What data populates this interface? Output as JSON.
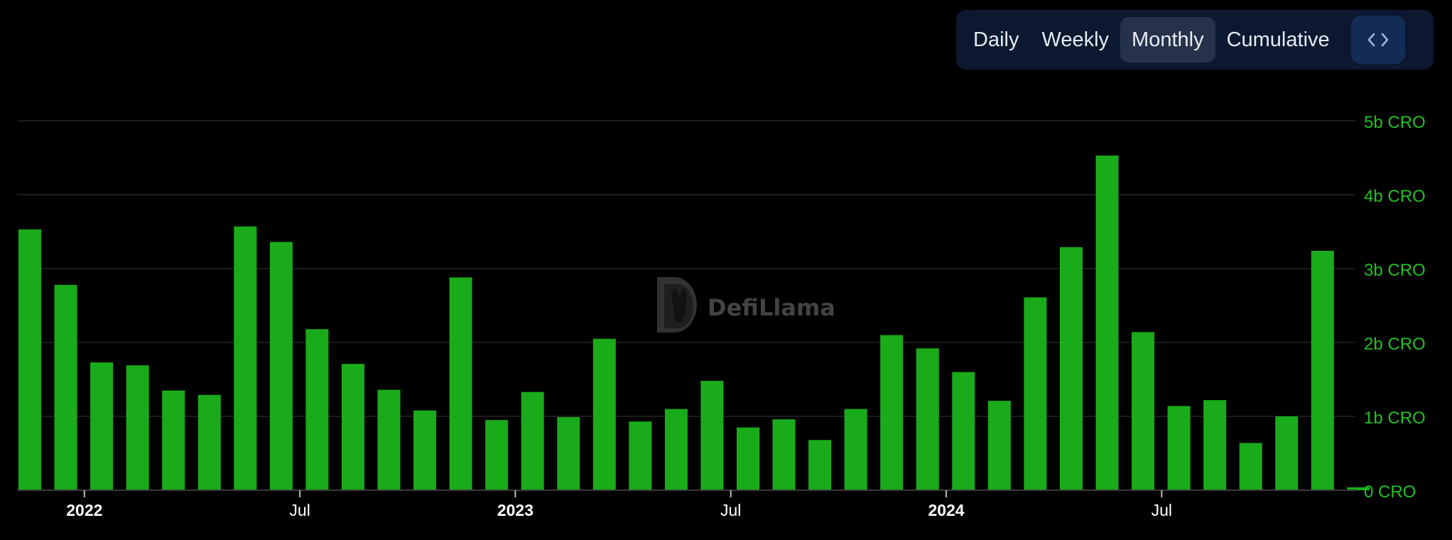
{
  "toolbar": {
    "tabs": [
      {
        "label": "Daily",
        "active": false
      },
      {
        "label": "Weekly",
        "active": false
      },
      {
        "label": "Monthly",
        "active": true
      },
      {
        "label": "Cumulative",
        "active": false
      }
    ],
    "embed_icon": "code-brackets-icon"
  },
  "watermark": {
    "label": "DefiLlama",
    "icon": "llama-logo-icon"
  },
  "colors": {
    "bar": "#1aab1b",
    "axis_label": "#22c022",
    "grid": "#1c1c1c",
    "tick_label": "#ffffff",
    "toolbar_bg": "#0b1830",
    "active_tab_bg": "#26324a",
    "embed_bg": "#132c57"
  },
  "chart_data": {
    "type": "bar",
    "categories": [
      "2021-12",
      "2022-01",
      "2022-02",
      "2022-03",
      "2022-04",
      "2022-05",
      "2022-06",
      "2022-07",
      "2022-08",
      "2022-09",
      "2022-10",
      "2022-11",
      "2022-12",
      "2023-01",
      "2023-02",
      "2023-03",
      "2023-04",
      "2023-05",
      "2023-06",
      "2023-07",
      "2023-08",
      "2023-09",
      "2023-10",
      "2023-11",
      "2023-12",
      "2024-01",
      "2024-02",
      "2024-03",
      "2024-04",
      "2024-05",
      "2024-06",
      "2024-07",
      "2024-08",
      "2024-09",
      "2024-10",
      "2024-11",
      "2024-12"
    ],
    "values": [
      3.53,
      2.78,
      1.73,
      1.69,
      1.35,
      1.29,
      3.57,
      3.36,
      2.18,
      1.71,
      1.36,
      1.08,
      2.88,
      0.95,
      1.33,
      0.99,
      2.05,
      0.93,
      1.1,
      1.48,
      0.85,
      0.96,
      0.68,
      1.1,
      2.1,
      1.92,
      1.6,
      1.21,
      2.61,
      3.29,
      4.53,
      2.14,
      1.14,
      1.22,
      0.64,
      1.0,
      3.24
    ],
    "last_partial_value": 0.04,
    "unit": "b CRO",
    "ylim": [
      0,
      5
    ],
    "yticks": [
      "0 CRO",
      "1b CRO",
      "2b CRO",
      "3b CRO",
      "4b CRO",
      "5b CRO"
    ],
    "xticks": [
      {
        "label": "2022",
        "at": "2022-01",
        "bold": true
      },
      {
        "label": "Jul",
        "at": "2022-07",
        "bold": false
      },
      {
        "label": "2023",
        "at": "2023-01",
        "bold": true
      },
      {
        "label": "Jul",
        "at": "2023-07",
        "bold": false
      },
      {
        "label": "2024",
        "at": "2024-01",
        "bold": true
      },
      {
        "label": "Jul",
        "at": "2024-07",
        "bold": false
      }
    ],
    "grid": true,
    "y_axis_position": "right",
    "title": "",
    "xlabel": "",
    "ylabel": ""
  }
}
